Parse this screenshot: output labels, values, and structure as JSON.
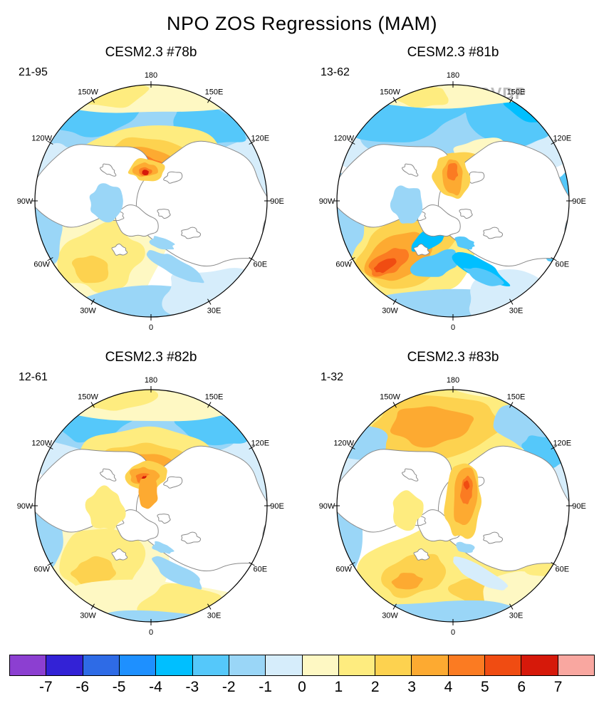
{
  "figure": {
    "title": "NPO ZOS Regressions (MAM)",
    "watermark": "© CVDP"
  },
  "chart_data": {
    "type": "heatmap",
    "subtype": "north-polar-stereographic filled-contour maps, 2x2 grid",
    "title": "NPO ZOS Regressions (MAM)",
    "panels": [
      {
        "title": "CESM2.3 #78b",
        "years": "21-95"
      },
      {
        "title": "CESM2.3 #81b",
        "years": "13-62"
      },
      {
        "title": "CESM2.3 #82b",
        "years": "12-61"
      },
      {
        "title": "CESM2.3 #83b",
        "years": "1-32"
      }
    ],
    "longitude_labels": [
      {
        "label": "180",
        "deg": 0
      },
      {
        "label": "150E",
        "deg": 30
      },
      {
        "label": "120E",
        "deg": 60
      },
      {
        "label": "90E",
        "deg": 90
      },
      {
        "label": "60E",
        "deg": 120
      },
      {
        "label": "30E",
        "deg": 150
      },
      {
        "label": "0",
        "deg": 180
      },
      {
        "label": "30W",
        "deg": 210
      },
      {
        "label": "60W",
        "deg": 240
      },
      {
        "label": "90W",
        "deg": 270
      },
      {
        "label": "120W",
        "deg": 300
      },
      {
        "label": "150W",
        "deg": 330
      }
    ],
    "colorbar": {
      "tick_labels": [
        "-7",
        "-6",
        "-5",
        "-4",
        "-3",
        "-2",
        "-1",
        "0",
        "1",
        "2",
        "3",
        "4",
        "5",
        "6",
        "7"
      ],
      "colors": [
        "#8C3FD1",
        "#3322D6",
        "#2E6BE6",
        "#1E90FF",
        "#00BFFF",
        "#55C8FA",
        "#9AD6F7",
        "#D6EDFB",
        "#FEF8C3",
        "#FEEC7F",
        "#FDD24F",
        "#FDAA31",
        "#FB7B22",
        "#F04C12",
        "#D6190A",
        "#F9A7A0"
      ],
      "range": [
        -7,
        7
      ],
      "segments": 16
    },
    "map_colors": {
      "land": "#FFFFFF",
      "coastline": "#8A8A8A",
      "outline": "#000000"
    }
  }
}
